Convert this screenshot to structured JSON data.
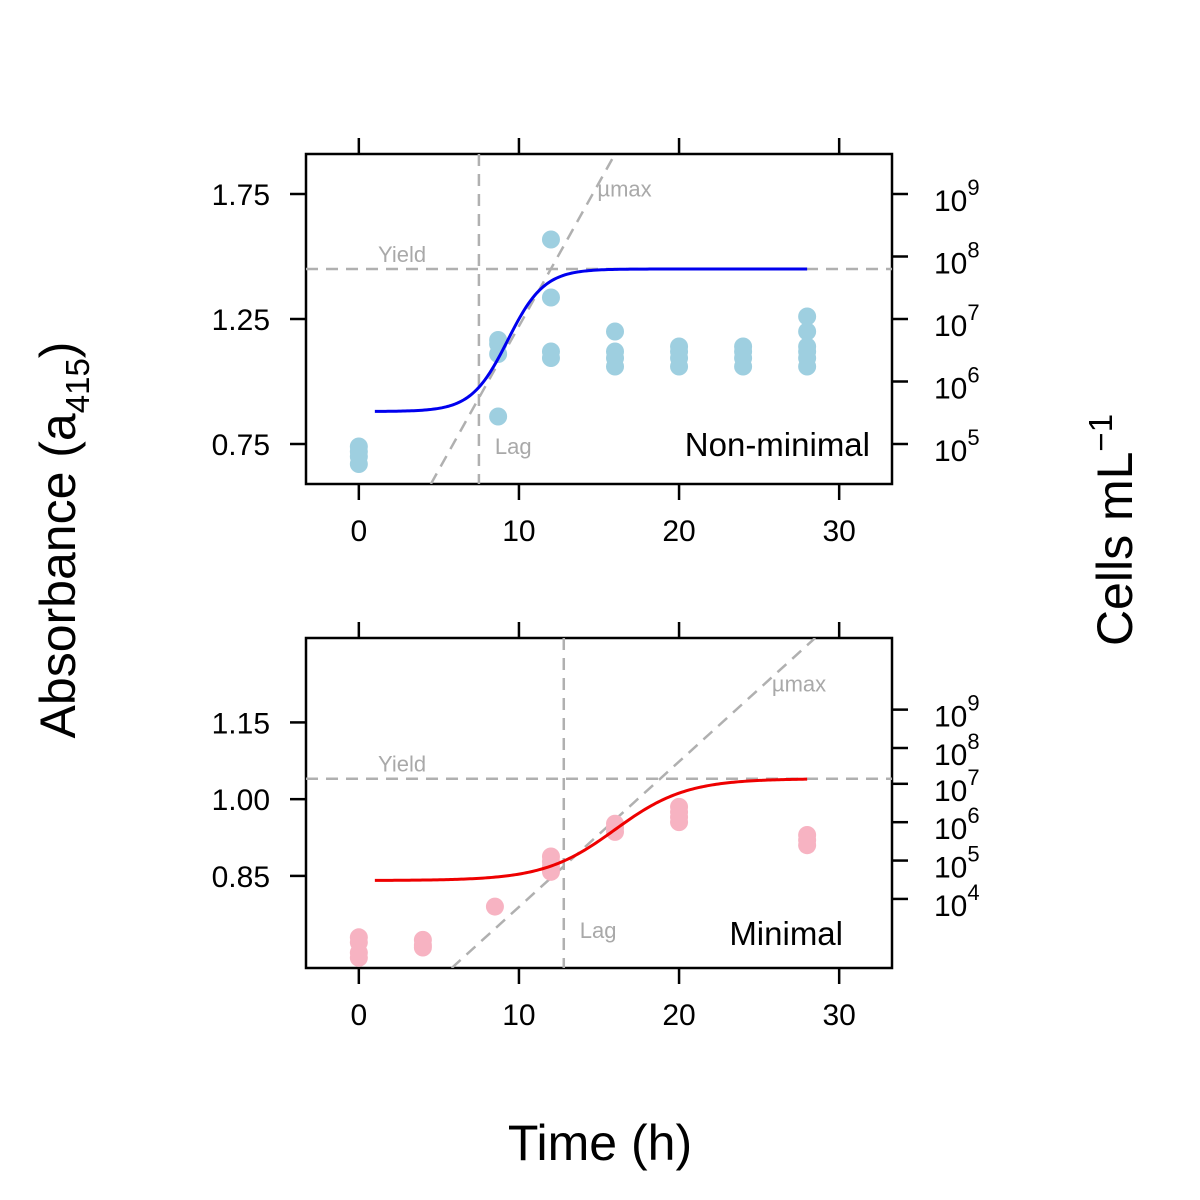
{
  "figure": {
    "xlabel": "Time (h)",
    "ylabel_main": "Absorbance (a",
    "ylabel_sub": "415",
    "ylabel_close": ")",
    "y2label_main": "Cells mL",
    "y2label_sup": "−1"
  },
  "colors": {
    "nonminimal_points": "#9ecfe0",
    "nonminimal_fit": "#0000ee",
    "minimal_points": "#f7b3c2",
    "minimal_fit": "#ee0000",
    "reference": "#b0b0b0",
    "reference_text": "#a9a9a9"
  },
  "chart_data": [
    {
      "type": "scatter",
      "panel": "Non-minimal",
      "label": "Non-minimal",
      "xlim": [
        -3.3,
        33.3
      ],
      "ylim": [
        0.59,
        1.91
      ],
      "x_ticks": [
        "0",
        "10",
        "20",
        "30"
      ],
      "x_tick_values": [
        0,
        10,
        20,
        30
      ],
      "y_ticks": [
        "0.75",
        "1.25",
        "1.75"
      ],
      "y_tick_values": [
        0.75,
        1.25,
        1.75
      ],
      "y2_ticks": [
        {
          "base": "10",
          "exp": "5",
          "value": 0.75
        },
        {
          "base": "10",
          "exp": "6",
          "value": 1.0
        },
        {
          "base": "10",
          "exp": "7",
          "value": 1.25
        },
        {
          "base": "10",
          "exp": "8",
          "value": 1.5
        },
        {
          "base": "10",
          "exp": "9",
          "value": 1.75
        }
      ],
      "points": [
        [
          0,
          0.74
        ],
        [
          0,
          0.72
        ],
        [
          0,
          0.7
        ],
        [
          0,
          0.67
        ],
        [
          8.7,
          1.166
        ],
        [
          8.7,
          1.15
        ],
        [
          8.7,
          1.11
        ],
        [
          8.7,
          0.86
        ],
        [
          12,
          1.568
        ],
        [
          12,
          1.336
        ],
        [
          12,
          1.12
        ],
        [
          12,
          1.094
        ],
        [
          16,
          1.2
        ],
        [
          16,
          1.12
        ],
        [
          16,
          1.094
        ],
        [
          16,
          1.06
        ],
        [
          20,
          1.14
        ],
        [
          20,
          1.12
        ],
        [
          20,
          1.094
        ],
        [
          20,
          1.06
        ],
        [
          24,
          1.14
        ],
        [
          24,
          1.12
        ],
        [
          24,
          1.094
        ],
        [
          24,
          1.06
        ],
        [
          28,
          1.26
        ],
        [
          28,
          1.2
        ],
        [
          28,
          1.14
        ],
        [
          28,
          1.12
        ],
        [
          28,
          1.094
        ],
        [
          28,
          1.06
        ]
      ],
      "fit": {
        "x_start": 1,
        "x_end": 28,
        "y0": 0.88,
        "asymptote": 1.45,
        "midpoint": 9.3,
        "rate": 0.88
      },
      "yield": 1.45,
      "yield_label": "Yield",
      "lag": 7.5,
      "lag_label": "Lag",
      "umax_label": "µmax",
      "umax_line": {
        "x_start": 4.5,
        "x_end": 16,
        "y_start": 0.59,
        "y_end": 1.91
      }
    },
    {
      "type": "scatter",
      "panel": "Minimal",
      "label": "Minimal",
      "xlim": [
        -3.3,
        33.3
      ],
      "ylim": [
        0.67,
        1.315
      ],
      "x_ticks": [
        "0",
        "10",
        "20",
        "30"
      ],
      "x_tick_values": [
        0,
        10,
        20,
        30
      ],
      "y_ticks": [
        "0.85",
        "1.00",
        "1.15"
      ],
      "y_tick_values": [
        0.85,
        1.0,
        1.15
      ],
      "y2_ticks": [
        {
          "base": "10",
          "exp": "4",
          "value": 0.805
        },
        {
          "base": "10",
          "exp": "5",
          "value": 0.88
        },
        {
          "base": "10",
          "exp": "6",
          "value": 0.955
        },
        {
          "base": "10",
          "exp": "7",
          "value": 1.03
        },
        {
          "base": "10",
          "exp": "8",
          "value": 1.1
        },
        {
          "base": "10",
          "exp": "9",
          "value": 1.175
        }
      ],
      "points": [
        [
          0,
          0.73
        ],
        [
          0,
          0.72
        ],
        [
          0,
          0.7
        ],
        [
          0,
          0.69
        ],
        [
          4,
          0.725
        ],
        [
          4,
          0.715
        ],
        [
          4,
          0.71
        ],
        [
          8.5,
          0.79
        ],
        [
          12,
          0.888
        ],
        [
          12,
          0.878
        ],
        [
          12,
          0.868
        ],
        [
          12,
          0.858
        ],
        [
          16,
          0.952
        ],
        [
          16,
          0.944
        ],
        [
          16,
          0.936
        ],
        [
          20,
          0.985
        ],
        [
          20,
          0.975
        ],
        [
          20,
          0.965
        ],
        [
          20,
          0.955
        ],
        [
          28,
          0.93
        ],
        [
          28,
          0.92
        ],
        [
          28,
          0.91
        ]
      ],
      "fit": {
        "x_start": 1,
        "x_end": 28,
        "y0": 0.841,
        "asymptote": 1.04,
        "midpoint": 16,
        "rate": 0.45
      },
      "yield": 1.04,
      "yield_label": "Yield",
      "lag": 12.8,
      "lag_label": "Lag",
      "umax_label": "µmax",
      "umax_line": {
        "x_start": 5.8,
        "x_end": 28.5,
        "y_start": 0.67,
        "y_end": 1.315
      }
    }
  ]
}
